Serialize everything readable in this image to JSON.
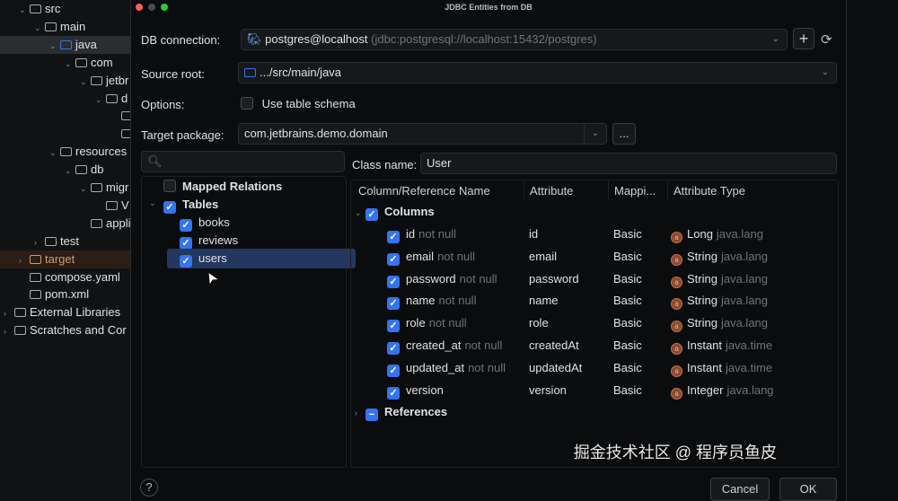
{
  "project_tree": [
    {
      "label": "src",
      "indent": 1,
      "chev": "v"
    },
    {
      "label": "main",
      "indent": 2,
      "chev": "v"
    },
    {
      "label": "java",
      "indent": 3,
      "chev": "v",
      "selected": true,
      "icon_color": "#3574f0"
    },
    {
      "label": "com",
      "indent": 4,
      "chev": "v"
    },
    {
      "label": "jetbr",
      "indent": 5,
      "chev": "v"
    },
    {
      "label": "d",
      "indent": 6,
      "chev": "v"
    },
    {
      "label": "",
      "indent": 7,
      "chev": ""
    },
    {
      "label": "",
      "indent": 7,
      "chev": ""
    },
    {
      "label": "resources",
      "indent": 3,
      "chev": "v"
    },
    {
      "label": "db",
      "indent": 4,
      "chev": "v"
    },
    {
      "label": "migr",
      "indent": 5,
      "chev": "v"
    },
    {
      "label": "V",
      "indent": 6,
      "chev": ""
    },
    {
      "label": "applica",
      "indent": 5,
      "chev": ""
    },
    {
      "label": "test",
      "indent": 2,
      "chev": ">"
    },
    {
      "label": "target",
      "indent": 1,
      "chev": ">",
      "target": true
    },
    {
      "label": "compose.yaml",
      "indent": 1,
      "chev": ""
    },
    {
      "label": "pom.xml",
      "indent": 1,
      "chev": ""
    },
    {
      "label": "External Libraries",
      "indent": 0,
      "chev": ">"
    },
    {
      "label": "Scratches and Cor",
      "indent": 0,
      "chev": ">"
    }
  ],
  "dialog": {
    "title": "JDBC Entities from DB",
    "db_connection_label": "DB connection:",
    "db_connection_value": "postgres@localhost",
    "db_connection_url": "(jdbc:postgresql://localhost:15432/postgres)",
    "source_root_label": "Source root:",
    "source_root_value": ".../src/main/java",
    "options_label": "Options:",
    "use_table_schema": "Use table schema",
    "target_package_label": "Target package:",
    "target_package_value": "com.jetbrains.demo.domain",
    "browse_label": "...",
    "search_placeholder": "",
    "class_name_label": "Class name:",
    "class_name_value": "User",
    "left_tree": {
      "mapped_relations": "Mapped Relations",
      "tables": "Tables",
      "items": [
        "books",
        "reviews",
        "users"
      ],
      "selected": "users"
    },
    "table": {
      "headers": [
        "Column/Reference Name",
        "Attribute",
        "Mappi...",
        "Attribute Type"
      ],
      "columns_group": "Columns",
      "references_group": "References",
      "rows": [
        {
          "name": "id",
          "constraint": "not null",
          "attribute": "id",
          "mapping": "Basic",
          "type": "Long",
          "pkg": "java.lang"
        },
        {
          "name": "email",
          "constraint": "not null",
          "attribute": "email",
          "mapping": "Basic",
          "type": "String",
          "pkg": "java.lang"
        },
        {
          "name": "password",
          "constraint": "not null",
          "attribute": "password",
          "mapping": "Basic",
          "type": "String",
          "pkg": "java.lang"
        },
        {
          "name": "name",
          "constraint": "not null",
          "attribute": "name",
          "mapping": "Basic",
          "type": "String",
          "pkg": "java.lang"
        },
        {
          "name": "role",
          "constraint": "not null",
          "attribute": "role",
          "mapping": "Basic",
          "type": "String",
          "pkg": "java.lang"
        },
        {
          "name": "created_at",
          "constraint": "not null",
          "attribute": "createdAt",
          "mapping": "Basic",
          "type": "Instant",
          "pkg": "java.time"
        },
        {
          "name": "updated_at",
          "constraint": "not null",
          "attribute": "updatedAt",
          "mapping": "Basic",
          "type": "Instant",
          "pkg": "java.time"
        },
        {
          "name": "version",
          "constraint": "",
          "attribute": "version",
          "mapping": "Basic",
          "type": "Integer",
          "pkg": "java.lang"
        }
      ]
    },
    "help": "?",
    "cancel": "Cancel",
    "ok": "OK"
  },
  "watermark": "掘金技术社区 @ 程序员鱼皮",
  "colors": {
    "accent": "#3574f0",
    "target": "#d49a6a"
  }
}
